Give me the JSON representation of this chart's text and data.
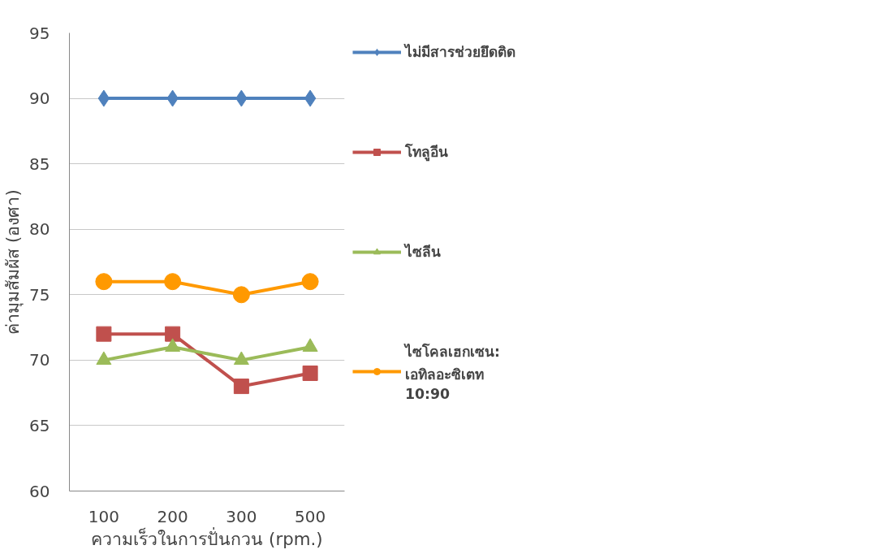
{
  "chart_data": {
    "type": "line",
    "xlabel": "ความเร็วในการปั่นกวน (rpm.)",
    "ylabel": "ค่ามุมสัมผัส (องศา)",
    "categories": [
      "100",
      "200",
      "300",
      "500"
    ],
    "ylim": [
      60,
      95
    ],
    "yticks": [
      60,
      65,
      70,
      75,
      80,
      85,
      90,
      95
    ],
    "grid": "y",
    "legend": "right",
    "line_style": "solid",
    "series": [
      {
        "name": "ไม่มีสารช่วยยึดติด",
        "color": "#4f81bd",
        "marker": "diamond",
        "values": [
          90,
          90,
          90,
          90
        ]
      },
      {
        "name": "โทลูอีน",
        "color": "#c0504d",
        "marker": "square",
        "values": [
          72,
          72,
          68,
          69
        ]
      },
      {
        "name": "ไซลีน",
        "color": "#9bbb59",
        "marker": "triangle",
        "values": [
          70,
          71,
          70,
          71
        ]
      },
      {
        "name": "ไซโคลเฮกเซน: เอทิลอะซิเตท 10:90",
        "color": "#ff9900",
        "marker": "circle",
        "values": [
          76,
          76,
          75,
          76
        ]
      }
    ]
  }
}
